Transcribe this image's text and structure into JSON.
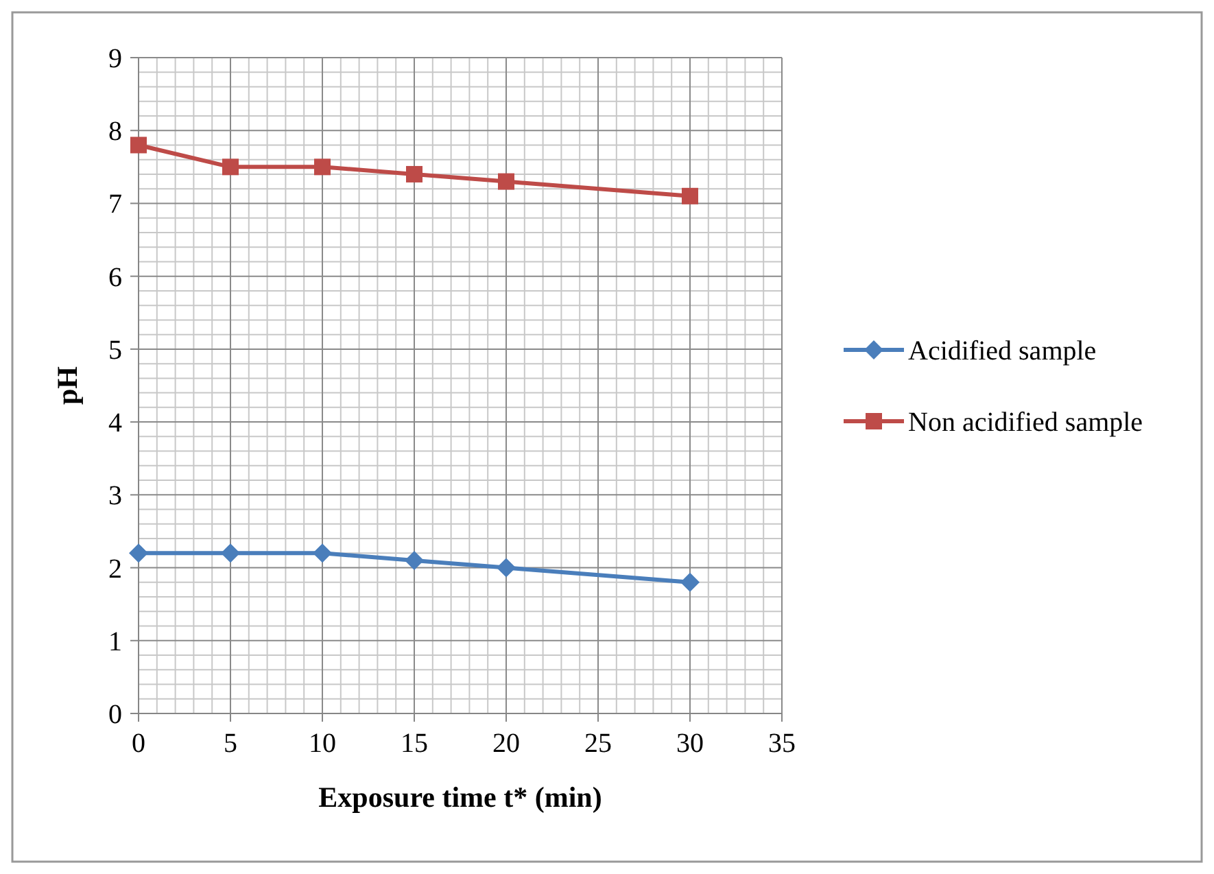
{
  "chart_data": {
    "type": "line",
    "xlabel": "Exposure time t* (min)",
    "ylabel": "pH",
    "x": [
      0,
      5,
      10,
      15,
      20,
      30
    ],
    "series": [
      {
        "name": "Acidified sample",
        "color": "#4a7ebb",
        "values": [
          2.2,
          2.2,
          2.2,
          2.1,
          2.0,
          1.8
        ],
        "marker": "diamond"
      },
      {
        "name": "Non acidified sample",
        "color": "#be4b48",
        "values": [
          7.8,
          7.5,
          7.5,
          7.4,
          7.3,
          7.1
        ],
        "marker": "square"
      }
    ],
    "xlim": [
      0,
      35
    ],
    "xticks": [
      0,
      5,
      10,
      15,
      20,
      25,
      30,
      35
    ],
    "ylim": [
      0,
      9
    ],
    "yticks": [
      0,
      1,
      2,
      3,
      4,
      5,
      6,
      7,
      8,
      9
    ],
    "grid": true,
    "legend": "right",
    "line_style": "solid"
  }
}
